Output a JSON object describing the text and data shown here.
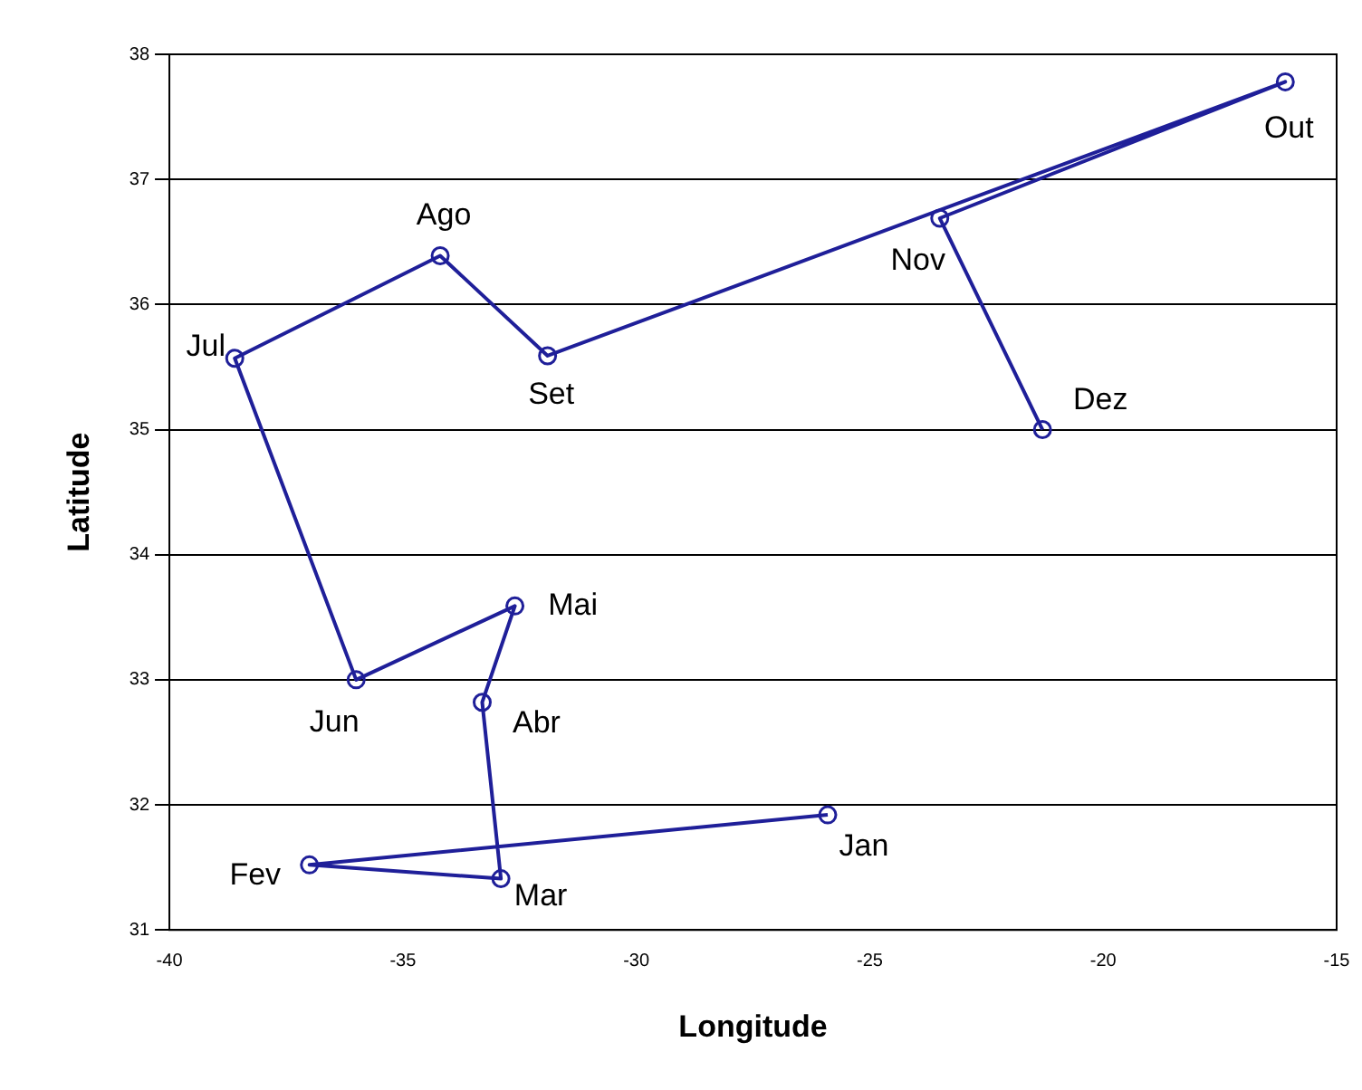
{
  "chart_data": {
    "type": "line",
    "xlabel": "Longitude",
    "ylabel": "Latitude",
    "x": [
      -25.9,
      -37.0,
      -32.9,
      -33.3,
      -32.6,
      -36.0,
      -38.6,
      -34.2,
      -31.9,
      -16.1,
      -23.5,
      -21.3
    ],
    "series": [
      {
        "color": "#1f1f99",
        "values": [
          31.92,
          31.52,
          31.41,
          32.82,
          33.59,
          33.0,
          35.57,
          36.39,
          35.59,
          37.78,
          36.69,
          35.0
        ]
      }
    ],
    "xlim": [
      -40,
      -15
    ],
    "xticks": [
      -40,
      -35,
      -30,
      -25,
      -20,
      -15
    ],
    "ylim": [
      31,
      38
    ],
    "yticks": [
      31,
      32,
      33,
      34,
      35,
      36,
      37,
      38
    ],
    "grid": "y",
    "legend": false,
    "marker": "circle",
    "line_style": "solid",
    "annotations": [
      {
        "text": "Jan",
        "x": -25.9,
        "y": 31.92
      },
      {
        "text": "Fev",
        "x": -37.0,
        "y": 31.52
      },
      {
        "text": "Mar",
        "x": -32.9,
        "y": 31.41
      },
      {
        "text": "Abr",
        "x": -33.3,
        "y": 32.82
      },
      {
        "text": "Mai",
        "x": -32.6,
        "y": 33.59
      },
      {
        "text": "Jun",
        "x": -36.0,
        "y": 33.0
      },
      {
        "text": "Jul",
        "x": -38.6,
        "y": 35.57
      },
      {
        "text": "Ago",
        "x": -34.2,
        "y": 36.39
      },
      {
        "text": "Set",
        "x": -31.9,
        "y": 35.59
      },
      {
        "text": "Out",
        "x": -16.1,
        "y": 37.78
      },
      {
        "text": "Nov",
        "x": -23.5,
        "y": 36.69
      },
      {
        "text": "Dez",
        "x": -21.3,
        "y": 35.0
      }
    ]
  }
}
